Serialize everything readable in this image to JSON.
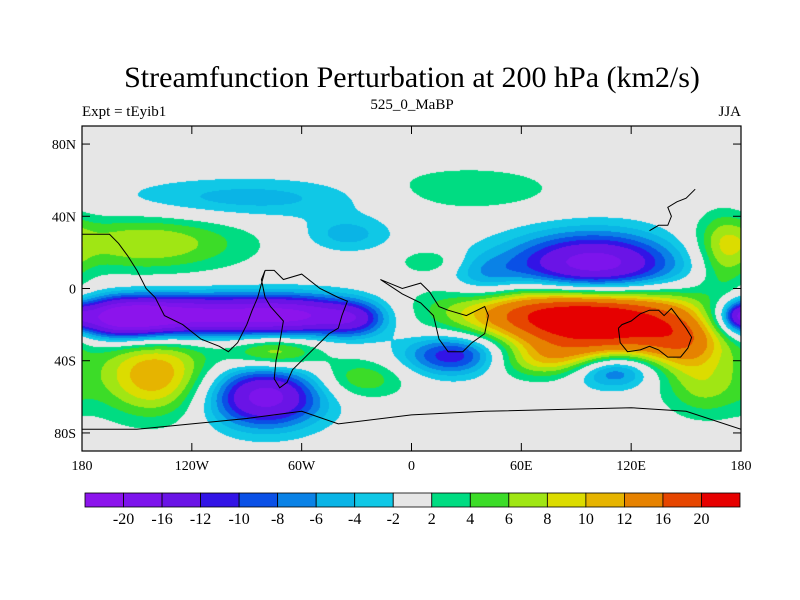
{
  "chart_data": {
    "type": "contour-map",
    "title": "Streamfunction Perturbation at 200 hPa (km2/s)",
    "left_label": "Expt = tEyib1",
    "center_label": "525_0_MaBP",
    "right_label": "JJA",
    "x_ticks": [
      "180",
      "120W",
      "60W",
      "0",
      "60E",
      "120E",
      "180"
    ],
    "x_tick_values": [
      -180,
      -120,
      -60,
      0,
      60,
      120,
      180
    ],
    "y_ticks": [
      "80N",
      "40N",
      "0",
      "40S",
      "80S"
    ],
    "y_tick_values": [
      80,
      40,
      0,
      -40,
      -80
    ],
    "xlim": [
      -180,
      180
    ],
    "ylim": [
      -90,
      90
    ],
    "colorbar": {
      "levels": [
        -20,
        -16,
        -12,
        -10,
        -8,
        -6,
        -4,
        -2,
        2,
        4,
        6,
        8,
        10,
        12,
        16,
        20
      ],
      "labels": [
        "-20",
        "-16",
        "-12",
        "-10",
        "-8",
        "-6",
        "-4",
        "-2",
        "2",
        "4",
        "6",
        "8",
        "10",
        "12",
        "16",
        "20"
      ],
      "colors": [
        "#8c14ec",
        "#7d14ec",
        "#6a14e6",
        "#3214e6",
        "#0a50e6",
        "#0a82e6",
        "#0ab4e6",
        "#10c8e6",
        "#e6e6e6",
        "#00dc82",
        "#3cdc28",
        "#a0e614",
        "#dcdc00",
        "#e6b400",
        "#e68200",
        "#e64600",
        "#e60000"
      ]
    },
    "features": [
      {
        "lon": 105,
        "lat": -18,
        "value": 24,
        "sx": 40,
        "sy": 14
      },
      {
        "lon": 60,
        "lat": -12,
        "value": 8,
        "sx": 38,
        "sy": 10
      },
      {
        "lon": 150,
        "lat": -30,
        "value": 8,
        "sx": 16,
        "sy": 12
      },
      {
        "lon": 160,
        "lat": -55,
        "value": 6,
        "sx": 16,
        "sy": 12
      },
      {
        "lon": 75,
        "lat": -40,
        "value": 7,
        "sx": 30,
        "sy": 7
      },
      {
        "lon": 100,
        "lat": 12,
        "value": -20,
        "sx": 33,
        "sy": 13
      },
      {
        "lon": 40,
        "lat": 5,
        "value": -5,
        "sx": 14,
        "sy": 9
      },
      {
        "lon": -120,
        "lat": -15,
        "value": -21,
        "sx": 40,
        "sy": 8
      },
      {
        "lon": -160,
        "lat": -17,
        "value": -16,
        "sx": 20,
        "sy": 8
      },
      {
        "lon": -60,
        "lat": -15,
        "value": -14,
        "sx": 25,
        "sy": 8
      },
      {
        "lon": -30,
        "lat": -17,
        "value": -8,
        "sx": 12,
        "sy": 7
      },
      {
        "lon": 25,
        "lat": -37,
        "value": -14,
        "sx": 20,
        "sy": 8
      },
      {
        "lon": 110,
        "lat": -45,
        "value": -12,
        "sx": 16,
        "sy": 7
      },
      {
        "lon": -80,
        "lat": -60,
        "value": -18,
        "sx": 22,
        "sy": 12
      },
      {
        "lon": -140,
        "lat": -48,
        "value": 12,
        "sx": 22,
        "sy": 16
      },
      {
        "lon": -75,
        "lat": -35,
        "value": 9,
        "sx": 18,
        "sy": 7
      },
      {
        "lon": -28,
        "lat": -50,
        "value": 6,
        "sx": 18,
        "sy": 8
      },
      {
        "lon": -145,
        "lat": 25,
        "value": 8,
        "sx": 38,
        "sy": 11
      },
      {
        "lon": -90,
        "lat": 50,
        "value": -5,
        "sx": 50,
        "sy": 8
      },
      {
        "lon": -35,
        "lat": 30,
        "value": -5,
        "sx": 17,
        "sy": 7
      },
      {
        "lon": 30,
        "lat": 55,
        "value": 4,
        "sx": 36,
        "sy": 9
      },
      {
        "lon": 10,
        "lat": 15,
        "value": 4,
        "sx": 12,
        "sy": 5
      },
      {
        "lon": 170,
        "lat": 20,
        "value": 6,
        "sx": 10,
        "sy": 16
      },
      {
        "lon": 178,
        "lat": -15,
        "value": -7,
        "sx": 5,
        "sy": 5
      }
    ],
    "continent_outlines": [
      {
        "name": "south-america",
        "points": [
          [
            -80,
            10
          ],
          [
            -75,
            10
          ],
          [
            -70,
            5
          ],
          [
            -60,
            8
          ],
          [
            -50,
            0
          ],
          [
            -40,
            -5
          ],
          [
            -35,
            -7
          ],
          [
            -38,
            -15
          ],
          [
            -40,
            -22
          ],
          [
            -45,
            -25
          ],
          [
            -48,
            -28
          ],
          [
            -55,
            -35
          ],
          [
            -60,
            -40
          ],
          [
            -65,
            -45
          ],
          [
            -68,
            -52
          ],
          [
            -72,
            -55
          ],
          [
            -75,
            -50
          ],
          [
            -74,
            -40
          ],
          [
            -72,
            -30
          ],
          [
            -70,
            -18
          ],
          [
            -77,
            -10
          ],
          [
            -80,
            -5
          ],
          [
            -82,
            5
          ],
          [
            -80,
            10
          ]
        ]
      },
      {
        "name": "north-america",
        "points": [
          [
            -180,
            30
          ],
          [
            -165,
            30
          ],
          [
            -160,
            25
          ],
          [
            -155,
            18
          ],
          [
            -150,
            10
          ],
          [
            -145,
            0
          ],
          [
            -140,
            -5
          ],
          [
            -135,
            -15
          ],
          [
            -125,
            -20
          ],
          [
            -115,
            -28
          ],
          [
            -105,
            -32
          ],
          [
            -100,
            -35
          ],
          [
            -95,
            -30
          ],
          [
            -90,
            -20
          ],
          [
            -87,
            -12
          ],
          [
            -84,
            -5
          ],
          [
            -80,
            10
          ]
        ]
      },
      {
        "name": "africa",
        "points": [
          [
            -17,
            5
          ],
          [
            -5,
            0
          ],
          [
            5,
            3
          ],
          [
            10,
            -2
          ],
          [
            15,
            -10
          ],
          [
            20,
            -12
          ],
          [
            30,
            -15
          ],
          [
            40,
            -10
          ],
          [
            42,
            -15
          ],
          [
            40,
            -25
          ],
          [
            33,
            -30
          ],
          [
            28,
            -35
          ],
          [
            20,
            -35
          ],
          [
            15,
            -28
          ],
          [
            12,
            -15
          ],
          [
            5,
            -8
          ],
          [
            -5,
            -3
          ],
          [
            -17,
            5
          ]
        ]
      },
      {
        "name": "australia",
        "points": [
          [
            113,
            -22
          ],
          [
            115,
            -20
          ],
          [
            120,
            -18
          ],
          [
            125,
            -14
          ],
          [
            130,
            -12
          ],
          [
            135,
            -12
          ],
          [
            138,
            -15
          ],
          [
            142,
            -11
          ],
          [
            145,
            -15
          ],
          [
            150,
            -22
          ],
          [
            153,
            -27
          ],
          [
            151,
            -33
          ],
          [
            147,
            -38
          ],
          [
            140,
            -38
          ],
          [
            135,
            -34
          ],
          [
            130,
            -32
          ],
          [
            125,
            -34
          ],
          [
            118,
            -35
          ],
          [
            114,
            -30
          ],
          [
            113,
            -22
          ]
        ]
      },
      {
        "name": "asia-east",
        "points": [
          [
            130,
            32
          ],
          [
            135,
            35
          ],
          [
            140,
            35
          ],
          [
            142,
            40
          ],
          [
            140,
            45
          ],
          [
            145,
            48
          ],
          [
            150,
            50
          ],
          [
            155,
            55
          ]
        ]
      },
      {
        "name": "antarctica",
        "points": [
          [
            -180,
            -78
          ],
          [
            -150,
            -78
          ],
          [
            -120,
            -75
          ],
          [
            -90,
            -72
          ],
          [
            -60,
            -68
          ],
          [
            -40,
            -75
          ],
          [
            0,
            -70
          ],
          [
            40,
            -68
          ],
          [
            80,
            -67
          ],
          [
            120,
            -66
          ],
          [
            150,
            -68
          ],
          [
            180,
            -78
          ]
        ]
      }
    ]
  }
}
